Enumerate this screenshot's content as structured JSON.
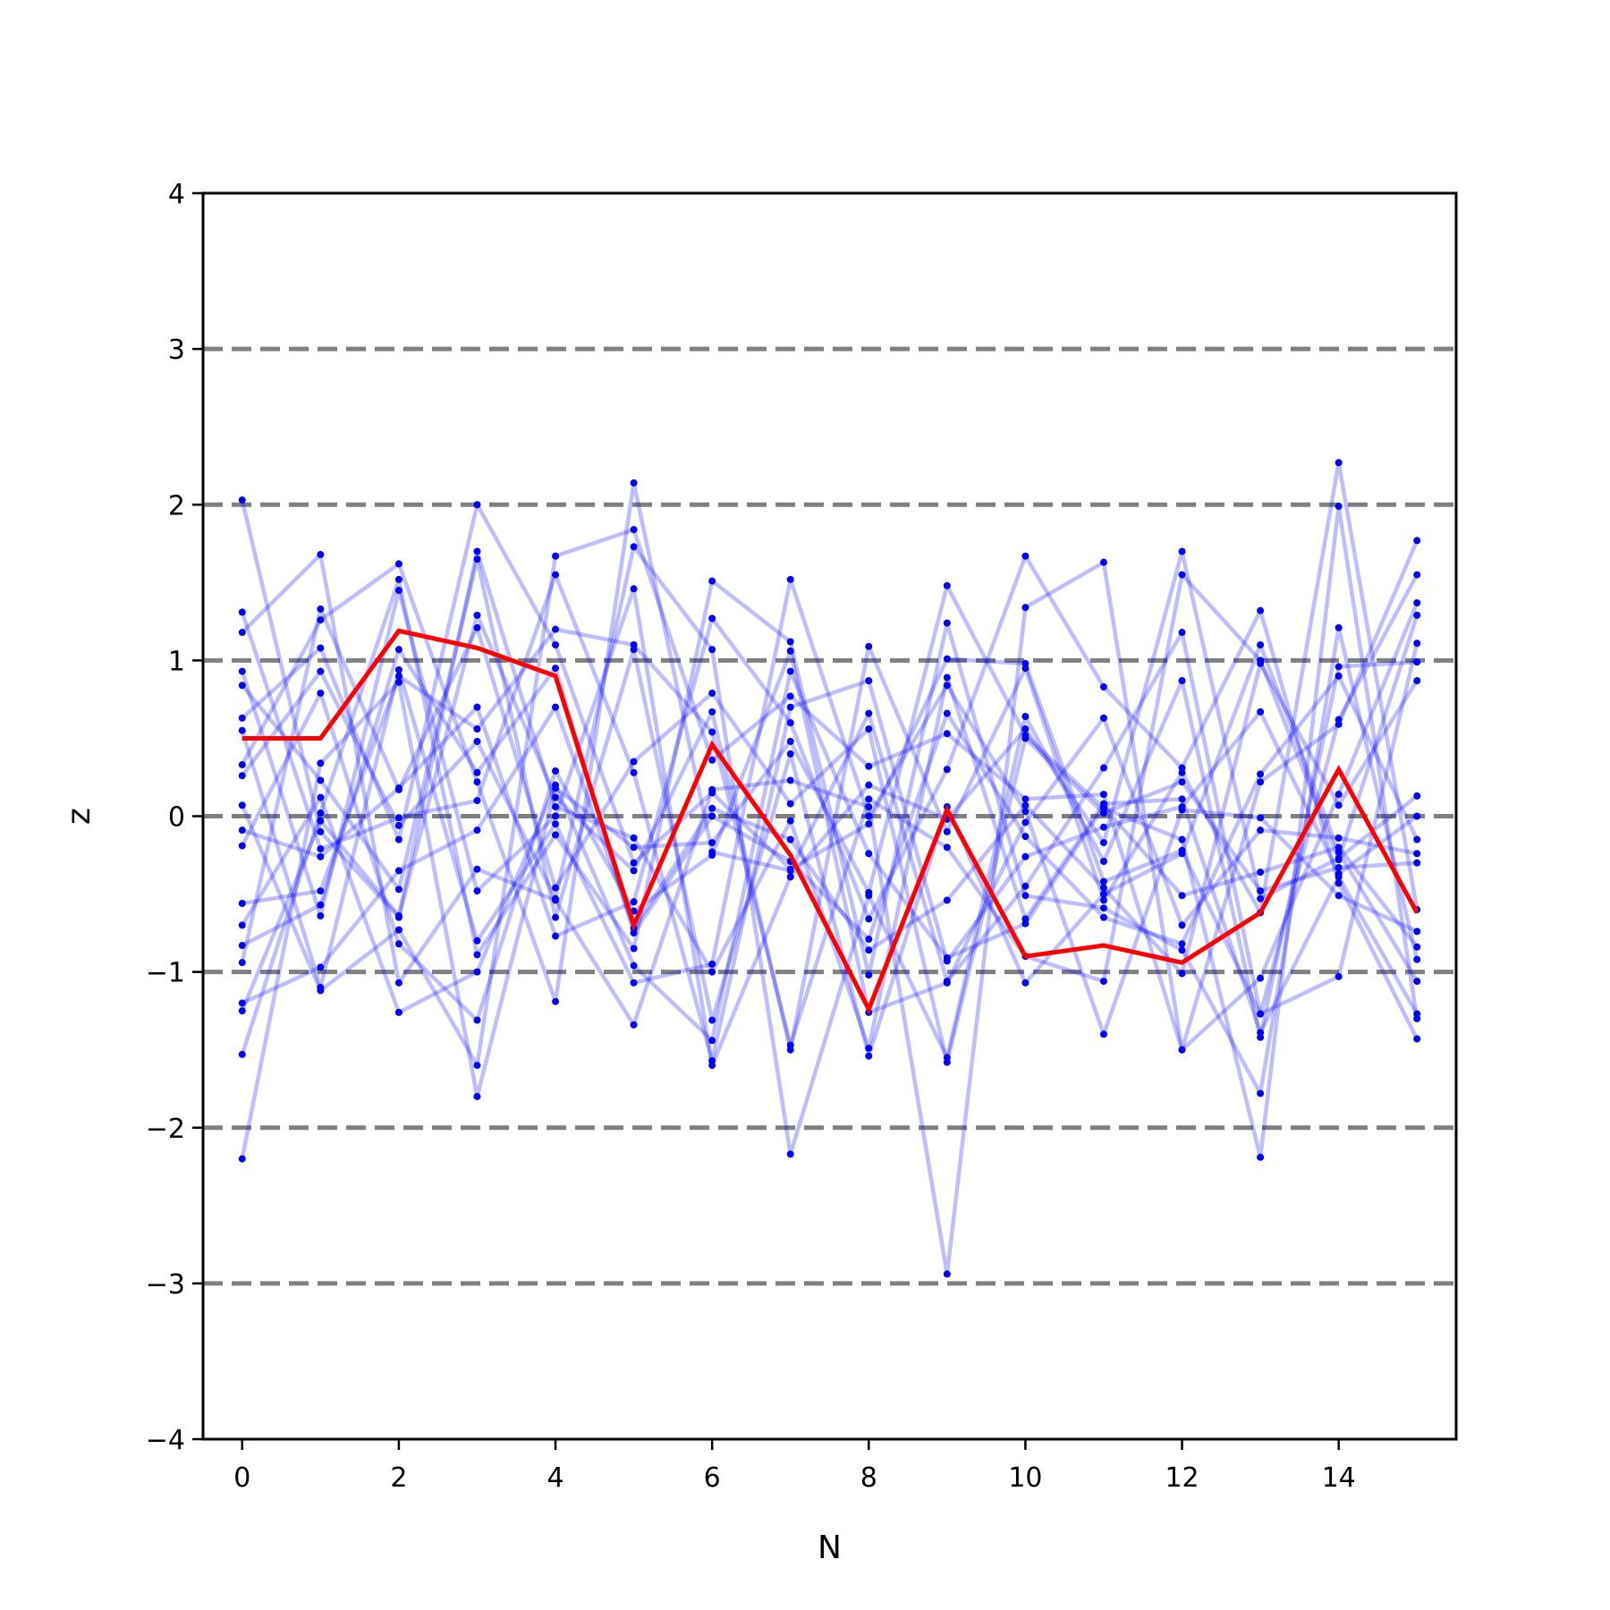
{
  "chart_data": {
    "type": "line",
    "xlabel": "N",
    "ylabel": "z",
    "xlim": [
      -0.5,
      15.5
    ],
    "ylim": [
      -4,
      4
    ],
    "xticks": [
      "0",
      "2",
      "4",
      "6",
      "8",
      "10",
      "12",
      "14"
    ],
    "yticks": [
      "−4",
      "−3",
      "−2",
      "−1",
      "0",
      "1",
      "2",
      "3",
      "4"
    ],
    "reference_lines": [
      -3,
      -2,
      -1,
      0,
      1,
      2,
      3
    ],
    "colors": {
      "background_series": "#0000ff",
      "highlight_series": "#ff0000",
      "reference_line": "#808080"
    },
    "x": [
      0,
      1,
      2,
      3,
      4,
      5,
      6,
      7,
      8,
      9,
      10,
      11,
      12,
      13,
      14,
      15
    ],
    "highlight": {
      "values": [
        0.5,
        0.5,
        1.19,
        1.08,
        0.9,
        -0.7,
        0.46,
        -0.25,
        -1.24,
        0.04,
        -0.9,
        -0.83,
        -0.94,
        -0.62,
        0.3,
        -0.62
      ]
    },
    "series": [
      {
        "values": [
          2.03,
          -0.1,
          -0.65,
          1.29,
          0.12,
          -0.35,
          0.67,
          -1.5,
          1.09,
          -0.1,
          0.95,
          -0.54,
          0.28,
          -0.62,
          2.27,
          -0.6
        ]
      },
      {
        "values": [
          -2.2,
          0.34,
          0.86,
          -1.8,
          0.18,
          -0.2,
          -0.17,
          0.48,
          -0.49,
          1.48,
          0.52,
          0.05,
          -0.15,
          -2.19,
          1.99,
          -1.3
        ]
      },
      {
        "values": [
          1.31,
          -0.21,
          -0.01,
          0.1,
          1.55,
          0.28,
          -1.57,
          0.7,
          0.87,
          -0.93,
          -0.26,
          -0.07,
          0.06,
          0.67,
          -0.37,
          0.0
        ]
      },
      {
        "values": [
          1.18,
          1.68,
          -1.07,
          -0.34,
          -0.54,
          -1.34,
          0.17,
          0.23,
          0.06,
          -2.94,
          1.34,
          1.63,
          -1.5,
          0.22,
          0.59,
          1.77
        ]
      },
      {
        "values": [
          0.93,
          -0.64,
          1.45,
          -0.48,
          0.0,
          1.46,
          -1.6,
          -0.39,
          0.2,
          -0.02,
          0.56,
          -0.17,
          1.7,
          -0.53,
          -0.27,
          0.13
        ]
      },
      {
        "values": [
          0.84,
          0.23,
          -0.47,
          1.65,
          -0.65,
          1.07,
          -1.31,
          0.4,
          -1.54,
          0.06,
          -1.07,
          -0.5,
          -0.24,
          1.1,
          -0.23,
          -1.06
        ]
      },
      {
        "values": [
          0.63,
          1.08,
          -0.15,
          2.0,
          1.1,
          -0.3,
          0.15,
          -0.34,
          -0.05,
          1.01,
          0.98,
          -0.42,
          -0.22,
          -1.27,
          0.62,
          1.55
        ]
      },
      {
        "values": [
          0.55,
          -1.1,
          0.94,
          -0.8,
          -0.05,
          -1.07,
          -0.95,
          1.52,
          0.0,
          0.84,
          0.03,
          -1.4,
          0.04,
          -0.01,
          -0.51,
          -0.74
        ]
      },
      {
        "values": [
          0.33,
          1.26,
          1.62,
          0.22,
          -1.19,
          2.14,
          -0.23,
          -0.35,
          0.66,
          -1.06,
          -0.45,
          0.31,
          1.18,
          -1.27,
          -1.03,
          1.11
        ]
      },
      {
        "values": [
          0.26,
          0.93,
          -0.06,
          0.48,
          -0.53,
          1.73,
          1.07,
          -2.17,
          -0.51,
          -1.55,
          0.64,
          -0.29,
          0.87,
          -1.42,
          0.96,
          0.99
        ]
      },
      {
        "values": [
          0.07,
          -1.12,
          -0.73,
          -1.6,
          1.67,
          1.84,
          0.36,
          0.77,
          0.32,
          0.53,
          0.11,
          0.14,
          -1.5,
          -1.04,
          0.14,
          1.37
        ]
      },
      {
        "values": [
          -0.09,
          -0.26,
          0.18,
          0.7,
          -0.77,
          -0.55,
          1.27,
          0.6,
          -0.66,
          0.3,
          1.67,
          0.83,
          0.31,
          1.32,
          -0.43,
          -1.43
        ]
      },
      {
        "values": [
          -0.19,
          0.79,
          -0.82,
          -1.31,
          0.29,
          -0.61,
          -0.25,
          1.06,
          -1.26,
          -1.07,
          -0.04,
          0.63,
          -0.7,
          -0.09,
          -0.14,
          -0.24
        ]
      },
      {
        "values": [
          -0.56,
          -0.48,
          0.9,
          0.56,
          1.2,
          1.1,
          0.54,
          -1.47,
          0.11,
          -0.2,
          -0.9,
          -1.06,
          1.55,
          1.0,
          -0.28,
          1.29
        ]
      },
      {
        "values": [
          -0.7,
          0.12,
          -1.26,
          -1.0,
          0.2,
          -0.96,
          -1.44,
          0.93,
          -0.24,
          -0.91,
          -0.69,
          0.06,
          -0.51,
          -0.36,
          -0.2,
          -0.84
        ]
      },
      {
        "values": [
          -0.83,
          -0.57,
          1.07,
          0.28,
          0.95,
          -0.75,
          0.0,
          -0.29,
          -0.79,
          0.66,
          -0.13,
          -0.65,
          -0.82,
          0.27,
          0.9,
          -0.15
        ]
      },
      {
        "values": [
          -0.94,
          1.33,
          0.17,
          1.21,
          -0.46,
          0.35,
          0.79,
          0.08,
          0.56,
          -1.58,
          0.5,
          0.02,
          0.22,
          -0.48,
          -0.33,
          -0.3
        ]
      },
      {
        "values": [
          -1.2,
          -0.97,
          -0.35,
          -0.09,
          0.7,
          -0.72,
          0.05,
          -0.15,
          -0.86,
          -0.54,
          0.07,
          -0.46,
          -1.01,
          0.98,
          0.07,
          0.87
        ]
      },
      {
        "values": [
          -1.53,
          0.02,
          1.52,
          -0.89,
          -0.12,
          -0.85,
          1.51,
          1.12,
          -1.02,
          1.24,
          -0.51,
          -0.59,
          -0.86,
          -1.78,
          1.21,
          -0.92
        ]
      },
      {
        "values": [
          -1.25,
          -0.03,
          -0.64,
          1.7,
          0.06,
          -0.14,
          -1.0,
          -0.03,
          -1.49,
          0.89,
          -0.66,
          0.08,
          0.11,
          -1.39,
          -0.39,
          -1.27
        ]
      }
    ]
  }
}
